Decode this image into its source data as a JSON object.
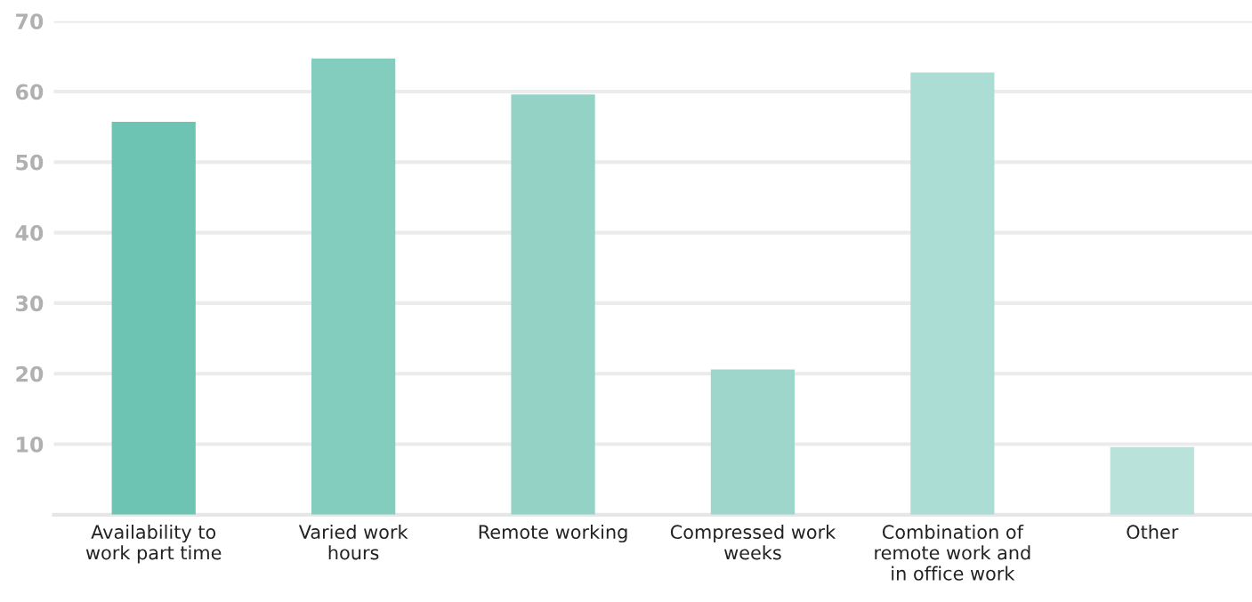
{
  "chart_data": {
    "type": "bar",
    "categories": [
      "Availability to\nwork part time",
      "Varied work\nhours",
      "Remote working",
      "Compressed work\nweeks",
      "Combination of\nremote work and\nin office work",
      "Other"
    ],
    "values": [
      55.7,
      64.7,
      59.6,
      20.6,
      62.7,
      9.6
    ],
    "colors": [
      "#6dc4b3",
      "#82cdbe",
      "#94d2c6",
      "#9fd6cc",
      "#acddd4",
      "#b9e2db"
    ],
    "ylim": [
      0,
      70
    ],
    "yticks": [
      10,
      20,
      30,
      40,
      50,
      60,
      70
    ],
    "grid": "y",
    "legend": false
  }
}
